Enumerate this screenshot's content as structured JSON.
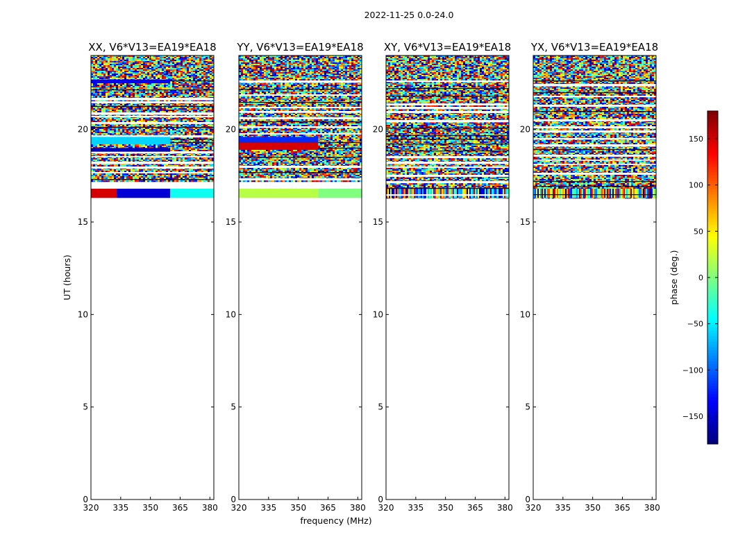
{
  "suptitle": "2022-11-25 0.0-24.0",
  "xlabel": "frequency (MHz)",
  "ylabel": "UT (hours)",
  "colorbar": {
    "label": "phase (deg.)",
    "range": [
      -180,
      180
    ],
    "ticks": [
      -150,
      -100,
      -50,
      0,
      50,
      100,
      150
    ],
    "colormap": "jet"
  },
  "chart_data": [
    {
      "type": "heatmap",
      "title": "XX, V6*V13=EA19*EA18",
      "xlim": [
        320,
        382
      ],
      "ylim": [
        0,
        24
      ],
      "xticks": [
        320,
        335,
        350,
        365,
        380
      ],
      "yticks": [
        0,
        5,
        10,
        15,
        20
      ],
      "data_ut_range": [
        16.3,
        24
      ],
      "noise_ut_range": [
        17.2,
        24
      ],
      "uniform_bands": [
        {
          "ut": [
            16.3,
            16.8
          ],
          "freq": [
            320,
            333
          ],
          "phase": 150
        },
        {
          "ut": [
            16.3,
            16.8
          ],
          "freq": [
            333,
            360
          ],
          "phase": -150
        },
        {
          "ut": [
            16.3,
            16.8
          ],
          "freq": [
            360,
            382
          ],
          "phase": -40
        },
        {
          "ut": [
            18.8,
            19.0
          ],
          "freq": [
            320,
            360
          ],
          "phase": -160
        },
        {
          "ut": [
            19.2,
            19.6
          ],
          "freq": [
            320,
            360
          ],
          "phase": -60
        },
        {
          "ut": [
            22.5,
            22.7
          ],
          "freq": [
            320,
            360
          ],
          "phase": -140
        }
      ]
    },
    {
      "type": "heatmap",
      "title": "YY, V6*V13=EA19*EA18",
      "xlim": [
        320,
        382
      ],
      "ylim": [
        0,
        24
      ],
      "xticks": [
        320,
        335,
        350,
        365,
        380
      ],
      "yticks": [
        0,
        5,
        10,
        15,
        20
      ],
      "data_ut_range": [
        16.3,
        24
      ],
      "noise_ut_range": [
        17.2,
        24
      ],
      "uniform_bands": [
        {
          "ut": [
            16.3,
            16.8
          ],
          "freq": [
            320,
            360
          ],
          "phase": 20
        },
        {
          "ut": [
            16.3,
            16.8
          ],
          "freq": [
            360,
            382
          ],
          "phase": 0
        },
        {
          "ut": [
            18.9,
            19.3
          ],
          "freq": [
            320,
            360
          ],
          "phase": 150
        },
        {
          "ut": [
            19.3,
            19.6
          ],
          "freq": [
            320,
            360
          ],
          "phase": -120
        }
      ]
    },
    {
      "type": "heatmap",
      "title": "XY, V6*V13=EA19*EA18",
      "xlim": [
        320,
        382
      ],
      "ylim": [
        0,
        24
      ],
      "xticks": [
        320,
        335,
        350,
        365,
        380
      ],
      "yticks": [
        0,
        5,
        10,
        15,
        20
      ],
      "data_ut_range": [
        16.3,
        24
      ],
      "noise_ut_range": [
        16.3,
        24
      ],
      "uniform_bands": []
    },
    {
      "type": "heatmap",
      "title": "YX, V6*V13=EA19*EA18",
      "xlim": [
        320,
        382
      ],
      "ylim": [
        0,
        24
      ],
      "xticks": [
        320,
        335,
        350,
        365,
        380
      ],
      "yticks": [
        0,
        5,
        10,
        15,
        20
      ],
      "data_ut_range": [
        16.3,
        24
      ],
      "noise_ut_range": [
        16.3,
        24
      ],
      "uniform_bands": []
    }
  ]
}
